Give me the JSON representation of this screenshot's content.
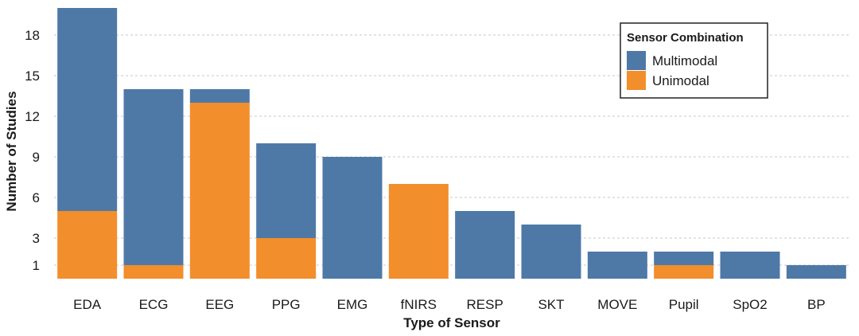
{
  "chart_data": {
    "type": "bar",
    "stacked": true,
    "categories": [
      "EDA",
      "ECG",
      "EEG",
      "PPG",
      "EMG",
      "fNIRS",
      "RESP",
      "SKT",
      "MOVE",
      "Pupil",
      "SpO2",
      "BP"
    ],
    "series": [
      {
        "name": "Unimodal",
        "color": "#F28E2B",
        "values": [
          5,
          1,
          13,
          3,
          0,
          7,
          0,
          0,
          0,
          1,
          0,
          0
        ]
      },
      {
        "name": "Multimodal",
        "color": "#4E79A7",
        "values": [
          15,
          13,
          1,
          7,
          9,
          0,
          5,
          4,
          2,
          1,
          2,
          1
        ]
      }
    ],
    "xlabel": "Type of Sensor",
    "ylabel": "Number of Studies",
    "yticks": [
      1,
      3,
      6,
      9,
      12,
      15,
      18
    ],
    "ylim": [
      0,
      20
    ],
    "grid": true,
    "legend": {
      "title": "Sensor Combination",
      "placement": "top-right",
      "entries": [
        "Multimodal",
        "Unimodal"
      ]
    }
  }
}
